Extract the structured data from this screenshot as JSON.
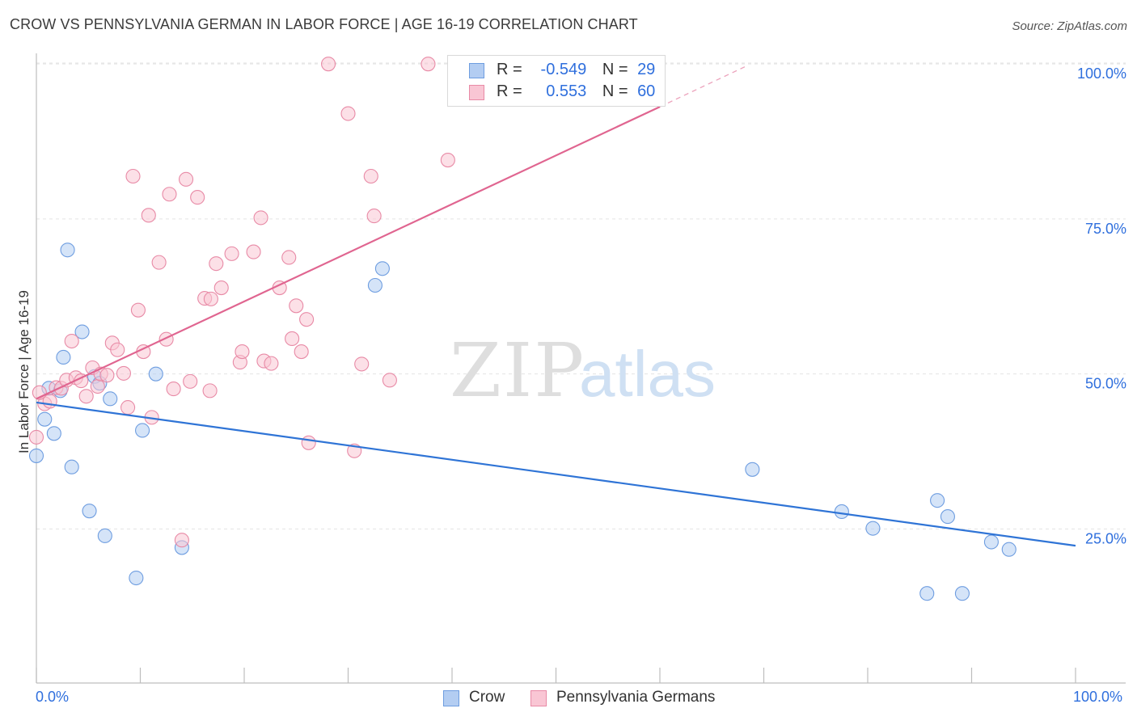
{
  "title": "CROW VS PENNSYLVANIA GERMAN IN LABOR FORCE | AGE 16-19 CORRELATION CHART",
  "source": "Source: ZipAtlas.com",
  "watermark": {
    "zip": "ZIP",
    "atlas": "atlas"
  },
  "legend_top": {
    "rows": [
      {
        "r_label": "R =",
        "r_value": "-0.549",
        "n_label": "N =",
        "n_value": "29",
        "color": "#b3cdf2",
        "border": "#6e9de0"
      },
      {
        "r_label": "R =",
        "r_value": "0.553",
        "n_label": "N =",
        "n_value": "60",
        "color": "#f9c6d4",
        "border": "#e88aa6"
      }
    ]
  },
  "legend_bottom": [
    {
      "label": "Crow",
      "color": "#b3cdf2",
      "border": "#6e9de0"
    },
    {
      "label": "Pennsylvania Germans",
      "color": "#f9c6d4",
      "border": "#e88aa6"
    }
  ],
  "x_tick_left": "0.0%",
  "x_tick_right": "100.0%",
  "chart_data": {
    "type": "scatter",
    "title": "CROW VS PENNSYLVANIA GERMAN IN LABOR FORCE | AGE 16-19 CORRELATION CHART",
    "xlabel": "",
    "ylabel": "In Labor Force | Age 16-19",
    "xlim": [
      0,
      100
    ],
    "ylim": [
      2.5,
      102.5
    ],
    "y_ticks": [
      {
        "value": 25,
        "label": "25.0%"
      },
      {
        "value": 50,
        "label": "50.0%"
      },
      {
        "value": 75,
        "label": "75.0%"
      },
      {
        "value": 100,
        "label": "100.0%"
      }
    ],
    "grid": true,
    "series": [
      {
        "name": "Crow",
        "color": "#6e9de0",
        "fill": "#b3cdf2",
        "line_color": "#2f74d6",
        "trend": {
          "x0": 0,
          "y0": 45.4,
          "x1": 100,
          "y1": 22.3
        },
        "points": [
          [
            0.0,
            36.8
          ],
          [
            0.8,
            42.7
          ],
          [
            1.2,
            47.7
          ],
          [
            1.7,
            40.4
          ],
          [
            2.3,
            47.3
          ],
          [
            2.6,
            52.7
          ],
          [
            3.0,
            70.0
          ],
          [
            3.4,
            35.0
          ],
          [
            4.4,
            56.8
          ],
          [
            5.1,
            27.9
          ],
          [
            5.6,
            49.6
          ],
          [
            6.1,
            48.5
          ],
          [
            6.6,
            23.9
          ],
          [
            7.1,
            46.0
          ],
          [
            9.6,
            17.1
          ],
          [
            10.2,
            40.9
          ],
          [
            11.5,
            50.0
          ],
          [
            14.0,
            22.0
          ],
          [
            32.6,
            64.3
          ],
          [
            33.3,
            67.0
          ],
          [
            68.9,
            34.6
          ],
          [
            77.5,
            27.8
          ],
          [
            80.5,
            25.1
          ],
          [
            85.7,
            14.6
          ],
          [
            86.7,
            29.6
          ],
          [
            87.7,
            27.0
          ],
          [
            89.1,
            14.6
          ],
          [
            91.9,
            22.9
          ],
          [
            93.6,
            21.7
          ]
        ]
      },
      {
        "name": "Pennsylvania Germans",
        "color": "#e88aa6",
        "fill": "#f9c6d4",
        "line_color": "#e06590",
        "trend": {
          "x0": 0,
          "y0": 46.0,
          "x1": 60,
          "y1": 93.1
        },
        "trend_dashed": {
          "x0": 60,
          "y0": 93.1,
          "x1": 68.5,
          "y1": 99.8
        },
        "points": [
          [
            0.0,
            39.8
          ],
          [
            0.8,
            45.2
          ],
          [
            1.3,
            45.6
          ],
          [
            1.9,
            47.8
          ],
          [
            2.4,
            47.7
          ],
          [
            2.9,
            49.0
          ],
          [
            3.4,
            55.3
          ],
          [
            3.8,
            49.4
          ],
          [
            4.3,
            48.9
          ],
          [
            4.8,
            46.4
          ],
          [
            5.4,
            51.0
          ],
          [
            5.9,
            48.0
          ],
          [
            6.2,
            50.0
          ],
          [
            6.8,
            49.8
          ],
          [
            7.3,
            55.0
          ],
          [
            7.8,
            53.9
          ],
          [
            8.4,
            50.1
          ],
          [
            8.8,
            44.6
          ],
          [
            9.3,
            81.9
          ],
          [
            9.8,
            60.3
          ],
          [
            10.3,
            53.6
          ],
          [
            10.8,
            75.6
          ],
          [
            11.1,
            43.0
          ],
          [
            11.8,
            68.0
          ],
          [
            12.5,
            55.6
          ],
          [
            12.8,
            79.0
          ],
          [
            13.2,
            47.6
          ],
          [
            14.0,
            23.2
          ],
          [
            14.4,
            81.4
          ],
          [
            14.8,
            48.8
          ],
          [
            15.5,
            78.5
          ],
          [
            16.2,
            62.2
          ],
          [
            16.7,
            47.3
          ],
          [
            16.8,
            62.1
          ],
          [
            17.3,
            67.8
          ],
          [
            17.8,
            63.9
          ],
          [
            18.8,
            69.4
          ],
          [
            19.6,
            51.9
          ],
          [
            19.8,
            53.6
          ],
          [
            20.9,
            69.7
          ],
          [
            21.6,
            75.2
          ],
          [
            21.9,
            52.1
          ],
          [
            22.6,
            51.7
          ],
          [
            23.4,
            63.9
          ],
          [
            24.3,
            68.8
          ],
          [
            24.6,
            55.7
          ],
          [
            25.0,
            61.0
          ],
          [
            25.5,
            53.6
          ],
          [
            26.0,
            58.8
          ],
          [
            26.2,
            38.9
          ],
          [
            28.1,
            100.0
          ],
          [
            30.0,
            92.0
          ],
          [
            30.6,
            37.6
          ],
          [
            31.3,
            51.6
          ],
          [
            32.2,
            81.9
          ],
          [
            32.5,
            75.5
          ],
          [
            34.0,
            49.0
          ],
          [
            37.7,
            100.0
          ],
          [
            39.6,
            84.5
          ],
          [
            0.3,
            47.0
          ]
        ]
      }
    ]
  }
}
